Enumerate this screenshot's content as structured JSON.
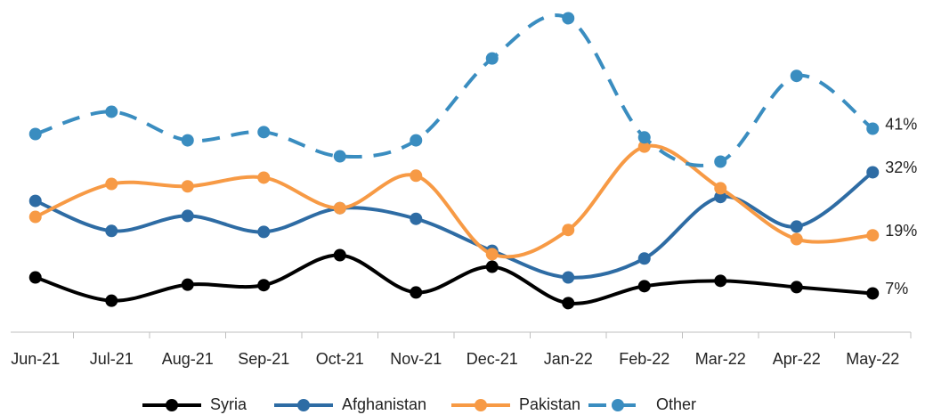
{
  "chart_data": {
    "type": "line",
    "categories": [
      "Jun-21",
      "Jul-21",
      "Aug-21",
      "Sep-21",
      "Oct-21",
      "Nov-21",
      "Dec-21",
      "Jan-22",
      "Feb-22",
      "Mar-22",
      "Apr-22",
      "May-22"
    ],
    "ylim": [
      -1,
      66
    ],
    "legend": "bottom",
    "series": [
      {
        "name": "Syria",
        "color": "#000000",
        "dashed": false,
        "values": [
          10.3,
          5.5,
          8.8,
          8.7,
          14.9,
          7.2,
          12.5,
          5.0,
          8.5,
          9.6,
          8.3,
          7
        ],
        "value_labels": [
          null,
          null,
          null,
          null,
          null,
          null,
          null,
          null,
          null,
          null,
          null,
          "7%"
        ]
      },
      {
        "name": "Afghanistan",
        "color": "#2e6ca4",
        "dashed": false,
        "values": [
          26.1,
          19.9,
          23.0,
          19.7,
          24.6,
          22.4,
          15.8,
          10.3,
          14.2,
          26.9,
          20.8,
          32
        ],
        "value_labels": [
          null,
          null,
          null,
          null,
          null,
          null,
          null,
          null,
          null,
          null,
          null,
          "32%"
        ]
      },
      {
        "name": "Pakistan",
        "color": "#f79a45",
        "dashed": false,
        "values": [
          22.8,
          29.6,
          29.1,
          30.9,
          24.6,
          31.3,
          15.1,
          20.1,
          37.3,
          28.7,
          18.2,
          19
        ],
        "value_labels": [
          null,
          null,
          null,
          null,
          null,
          null,
          null,
          null,
          null,
          null,
          null,
          "19%"
        ]
      },
      {
        "name": "Other",
        "color": "#3a8dc0",
        "dashed": true,
        "values": [
          39.9,
          44.5,
          38.6,
          40.3,
          35.3,
          38.6,
          55.5,
          63.8,
          39.2,
          34.2,
          51.9,
          41
        ],
        "value_labels": [
          null,
          null,
          null,
          null,
          null,
          null,
          null,
          null,
          null,
          null,
          null,
          "41%"
        ]
      }
    ]
  }
}
